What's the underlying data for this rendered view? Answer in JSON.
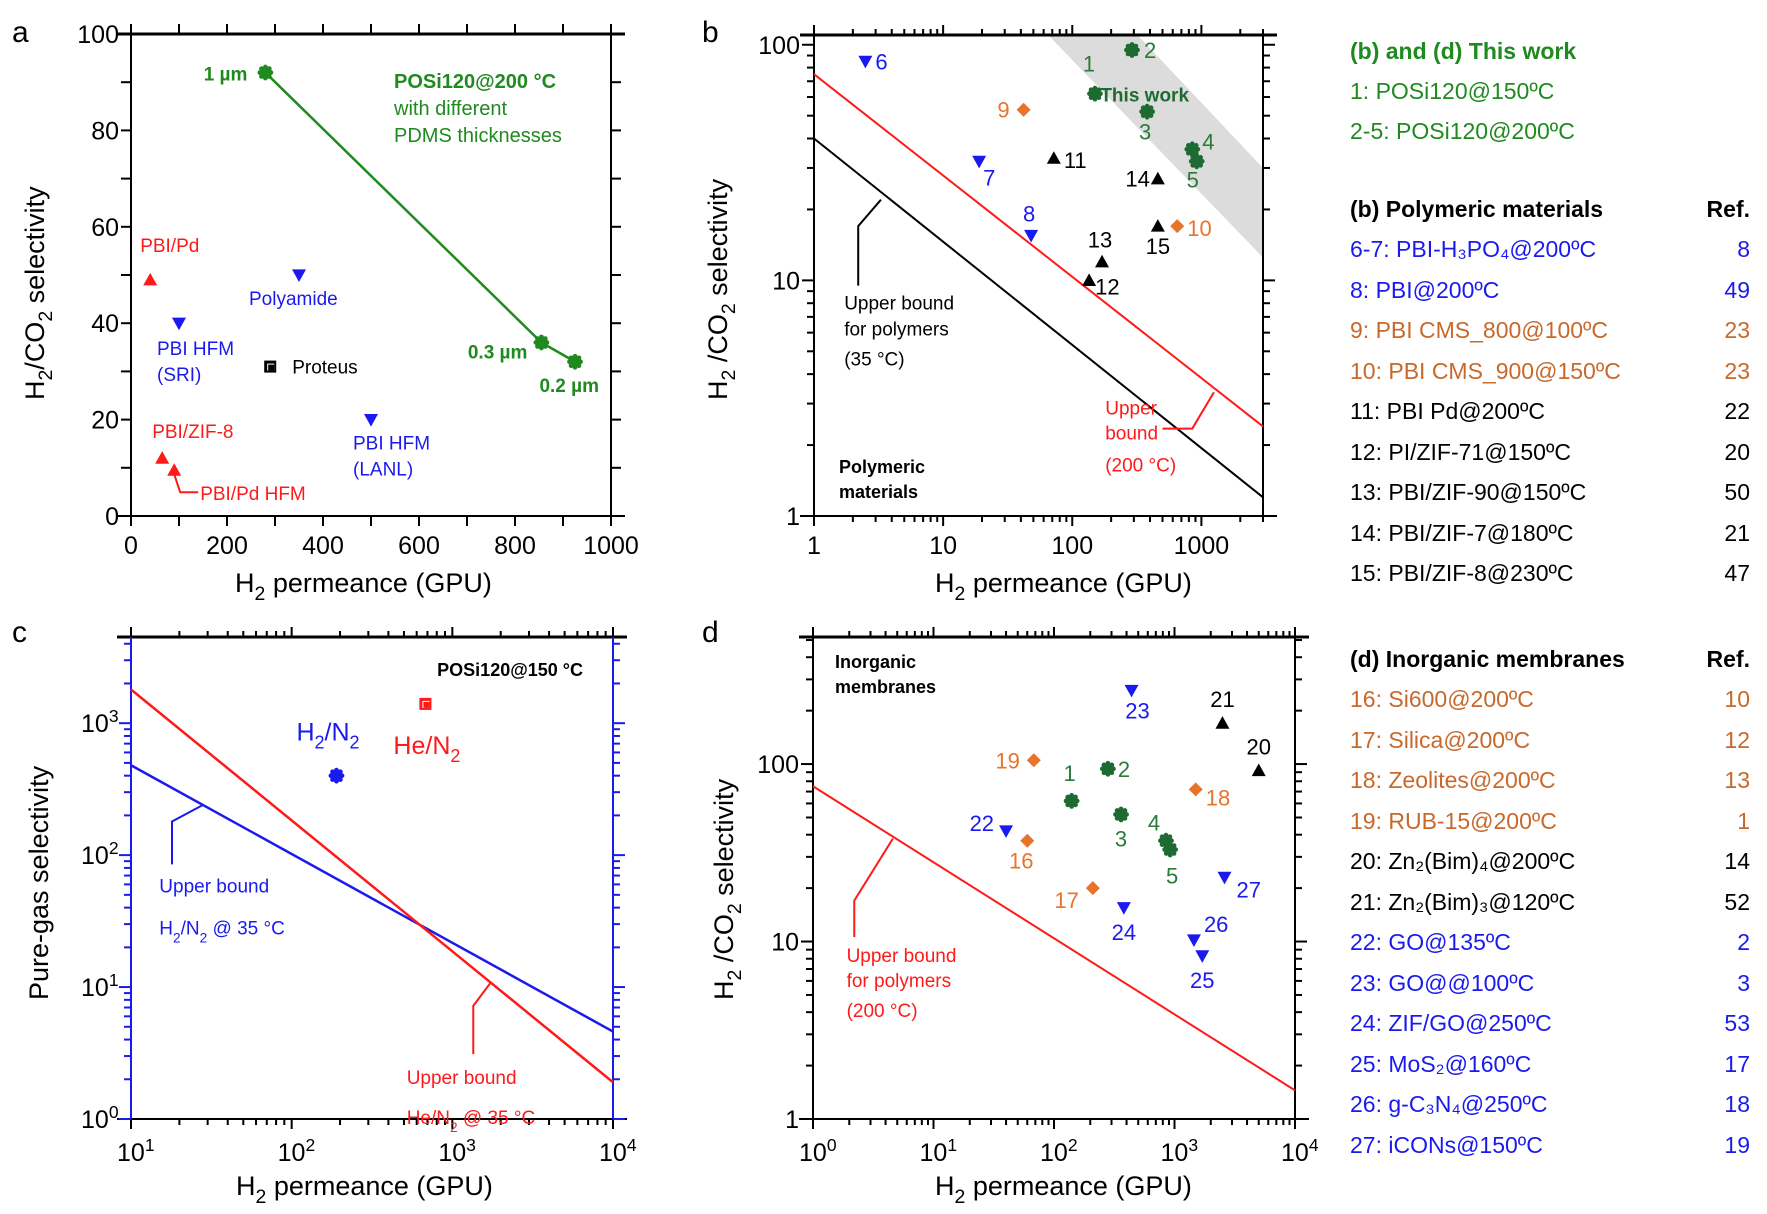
{
  "colors": {
    "green": "#1f8a1f",
    "darkgreen": "#1e6b32",
    "blue": "#1a1aee",
    "red": "#ff1a1a",
    "orange": "#e8732a",
    "legend_orange": "#c8682a",
    "black": "#000000",
    "band": "#dcdcdc"
  },
  "chart_data": [
    {
      "panel": "a",
      "type": "scatter",
      "xscale": "linear",
      "yscale": "linear",
      "xlabel": "H2 permeance (GPU)",
      "ylabel": "H2/CO2 selectivity",
      "xlim": [
        0,
        1000
      ],
      "ylim": [
        0,
        100
      ],
      "xticks": [
        "0",
        "200",
        "400",
        "600",
        "800",
        "1000"
      ],
      "yticks": [
        "0",
        "20",
        "40",
        "60",
        "80",
        "100"
      ],
      "annotation": {
        "title": "POSi120@200 °C",
        "lines": [
          "with different",
          "PDMS thicknesses"
        ]
      },
      "series": [
        {
          "name": "POSi120@200 °C",
          "marker": "asterisk",
          "color": "green",
          "connected": true,
          "points": [
            {
              "x": 280,
              "y": 92,
              "label": "1 µm"
            },
            {
              "x": 855,
              "y": 36,
              "label": "0.3 µm"
            },
            {
              "x": 925,
              "y": 32,
              "label": "0.2 µm"
            }
          ]
        },
        {
          "name": "PBI/Pd",
          "marker": "triangle-up",
          "color": "red",
          "points": [
            {
              "x": 40,
              "y": 49,
              "label": "PBI/Pd"
            }
          ]
        },
        {
          "name": "PBI/ZIF-8",
          "marker": "triangle-up",
          "color": "red",
          "points": [
            {
              "x": 65,
              "y": 12,
              "label": "PBI/ZIF-8"
            }
          ]
        },
        {
          "name": "PBI/Pd HFM",
          "marker": "triangle-up",
          "color": "red",
          "points": [
            {
              "x": 90,
              "y": 9.5,
              "label": "PBI/Pd HFM"
            }
          ]
        },
        {
          "name": "Polyamide",
          "marker": "triangle-down",
          "color": "blue",
          "points": [
            {
              "x": 350,
              "y": 50,
              "label": "Polyamide"
            }
          ]
        },
        {
          "name": "PBI HFM (SRI)",
          "marker": "triangle-down",
          "color": "blue",
          "points": [
            {
              "x": 100,
              "y": 40,
              "label": "PBI HFM (SRI)"
            }
          ]
        },
        {
          "name": "PBI HFM (LANL)",
          "marker": "triangle-down",
          "color": "blue",
          "points": [
            {
              "x": 500,
              "y": 20,
              "label": "PBI HFM (LANL)"
            }
          ]
        },
        {
          "name": "Proteus",
          "marker": "square",
          "color": "black",
          "points": [
            {
              "x": 290,
              "y": 31,
              "label": "Proteus"
            }
          ]
        }
      ]
    },
    {
      "panel": "b",
      "type": "scatter",
      "xscale": "log",
      "yscale": "log",
      "xlabel": "H2 permeance (GPU)",
      "ylabel": "H2/CO2 selectivity",
      "xlim": [
        1,
        3000
      ],
      "ylim": [
        1,
        110
      ],
      "xticks": [
        "1",
        "10",
        "100",
        "1000"
      ],
      "yticks": [
        "1",
        "10",
        "100"
      ],
      "annotations": [
        "This work",
        "Polymeric materials"
      ],
      "lines": [
        {
          "name": "Upper bound (200 °C)",
          "color": "red",
          "points": [
            [
              1,
              75
            ],
            [
              3000,
              2.4
            ]
          ],
          "label": [
            "Upper",
            "bound",
            "(200 °C)"
          ]
        },
        {
          "name": "Upper bound for polymers (35 °C)",
          "color": "black",
          "points": [
            [
              1,
              40
            ],
            [
              3000,
              1.2
            ]
          ],
          "label": [
            "Upper bound",
            "for polymers",
            "(35 °C)"
          ]
        }
      ],
      "points": [
        {
          "id": "1",
          "x": 150,
          "y": 62,
          "marker": "asterisk",
          "color": "darkgreen"
        },
        {
          "id": "2",
          "x": 290,
          "y": 95,
          "marker": "asterisk",
          "color": "darkgreen"
        },
        {
          "id": "3",
          "x": 380,
          "y": 52,
          "marker": "asterisk",
          "color": "darkgreen"
        },
        {
          "id": "4",
          "x": 850,
          "y": 36,
          "marker": "asterisk",
          "color": "darkgreen"
        },
        {
          "id": "5",
          "x": 920,
          "y": 32,
          "marker": "asterisk",
          "color": "darkgreen"
        },
        {
          "id": "6",
          "x": 2.5,
          "y": 85,
          "marker": "triangle-down",
          "color": "blue"
        },
        {
          "id": "7",
          "x": 19,
          "y": 32,
          "marker": "triangle-down",
          "color": "blue"
        },
        {
          "id": "8",
          "x": 48,
          "y": 15.5,
          "marker": "triangle-down",
          "color": "blue"
        },
        {
          "id": "9",
          "x": 42,
          "y": 53,
          "marker": "diamond",
          "color": "orange"
        },
        {
          "id": "10",
          "x": 650,
          "y": 17,
          "marker": "diamond",
          "color": "orange"
        },
        {
          "id": "11",
          "x": 72,
          "y": 33,
          "marker": "triangle-up",
          "color": "black"
        },
        {
          "id": "12",
          "x": 135,
          "y": 10,
          "marker": "triangle-up",
          "color": "black"
        },
        {
          "id": "13",
          "x": 170,
          "y": 12,
          "marker": "triangle-up",
          "color": "black"
        },
        {
          "id": "14",
          "x": 460,
          "y": 27,
          "marker": "triangle-up",
          "color": "black"
        },
        {
          "id": "15",
          "x": 460,
          "y": 17,
          "marker": "triangle-up",
          "color": "black"
        }
      ]
    },
    {
      "panel": "c",
      "type": "scatter",
      "xscale": "log",
      "yscale": "log",
      "xlabel": "H2 permeance (GPU)",
      "ylabel": "Pure-gas selectivity",
      "xlim": [
        10,
        10000
      ],
      "ylim": [
        1,
        4500
      ],
      "xticks": [
        "10^1",
        "10^2",
        "10^3",
        "10^4"
      ],
      "yticks": [
        "10^0",
        "10^1",
        "10^2",
        "10^3"
      ],
      "annotation": "POSi120@150 °C",
      "lines": [
        {
          "name": "Upper bound H2/N2 @ 35 °C",
          "color": "blue",
          "points": [
            [
              10,
              480
            ],
            [
              10000,
              4.6
            ]
          ]
        },
        {
          "name": "Upper bound He/N2 @ 35 °C",
          "color": "red",
          "points": [
            [
              10,
              1800
            ],
            [
              10000,
              1.9
            ]
          ]
        }
      ],
      "points": [
        {
          "name": "H2/N2",
          "x": 190,
          "y": 400,
          "marker": "asterisk",
          "color": "blue"
        },
        {
          "name": "He/N2",
          "x": 680,
          "y": 1400,
          "marker": "square",
          "color": "red"
        }
      ]
    },
    {
      "panel": "d",
      "type": "scatter",
      "xscale": "log",
      "yscale": "log",
      "xlabel": "H2 permeance (GPU)",
      "ylabel": "H2/CO2 selectivity",
      "xlim": [
        1,
        10000
      ],
      "ylim": [
        1,
        520
      ],
      "xticks": [
        "10^0",
        "10^1",
        "10^2",
        "10^3",
        "10^4"
      ],
      "yticks": [
        "1",
        "10",
        "100"
      ],
      "annotation": "Inorganic membranes",
      "lines": [
        {
          "name": "Upper bound for polymers (200 °C)",
          "color": "red",
          "points": [
            [
              1,
              75
            ],
            [
              10000,
              1.45
            ]
          ]
        }
      ],
      "points": [
        {
          "id": "1",
          "x": 140,
          "y": 62,
          "marker": "asterisk",
          "color": "darkgreen"
        },
        {
          "id": "2",
          "x": 280,
          "y": 94,
          "marker": "asterisk",
          "color": "darkgreen"
        },
        {
          "id": "3",
          "x": 360,
          "y": 52,
          "marker": "asterisk",
          "color": "darkgreen"
        },
        {
          "id": "4",
          "x": 850,
          "y": 37,
          "marker": "asterisk",
          "color": "darkgreen"
        },
        {
          "id": "5",
          "x": 920,
          "y": 33,
          "marker": "asterisk",
          "color": "darkgreen"
        },
        {
          "id": "16",
          "x": 60,
          "y": 37,
          "marker": "diamond",
          "color": "orange"
        },
        {
          "id": "17",
          "x": 210,
          "y": 20,
          "marker": "diamond",
          "color": "orange"
        },
        {
          "id": "18",
          "x": 1500,
          "y": 72,
          "marker": "diamond",
          "color": "orange"
        },
        {
          "id": "19",
          "x": 68,
          "y": 105,
          "marker": "diamond",
          "color": "orange"
        },
        {
          "id": "20",
          "x": 5000,
          "y": 92,
          "marker": "triangle-up",
          "color": "black"
        },
        {
          "id": "21",
          "x": 2500,
          "y": 170,
          "marker": "triangle-up",
          "color": "black"
        },
        {
          "id": "22",
          "x": 40,
          "y": 42,
          "marker": "triangle-down",
          "color": "blue"
        },
        {
          "id": "23",
          "x": 440,
          "y": 260,
          "marker": "triangle-down",
          "color": "blue"
        },
        {
          "id": "24",
          "x": 380,
          "y": 15.5,
          "marker": "triangle-down",
          "color": "blue"
        },
        {
          "id": "25",
          "x": 1700,
          "y": 8.3,
          "marker": "triangle-down",
          "color": "blue"
        },
        {
          "id": "26",
          "x": 1450,
          "y": 10.2,
          "marker": "triangle-down",
          "color": "blue"
        },
        {
          "id": "27",
          "x": 2600,
          "y": 23,
          "marker": "triangle-down",
          "color": "blue"
        }
      ]
    }
  ],
  "panel_letters": [
    "a",
    "b",
    "c",
    "d"
  ],
  "legend": {
    "this_work": {
      "title": "(b) and (d) This work",
      "items": [
        "1: POSi120@150ºC",
        "2-5: POSi120@200ºC"
      ]
    },
    "polymeric": {
      "title": "(b) Polymeric materials",
      "ref_header": "Ref.",
      "items": [
        {
          "label": "6-7: PBI-H₃PO₄@200ºC",
          "ref": "8",
          "color": "blue"
        },
        {
          "label": "8: PBI@200ºC",
          "ref": "49",
          "color": "blue"
        },
        {
          "label": "9: PBI CMS_800@100ºC",
          "ref": "23",
          "color": "legend_orange"
        },
        {
          "label": "10: PBI CMS_900@150ºC",
          "ref": "23",
          "color": "legend_orange"
        },
        {
          "label": "11: PBI Pd@200ºC",
          "ref": "22",
          "color": "black"
        },
        {
          "label": "12: PI/ZIF-71@150ºC",
          "ref": "20",
          "color": "black"
        },
        {
          "label": "13: PBI/ZIF-90@150ºC",
          "ref": "50",
          "color": "black"
        },
        {
          "label": "14: PBI/ZIF-7@180ºC",
          "ref": "21",
          "color": "black"
        },
        {
          "label": "15: PBI/ZIF-8@230ºC",
          "ref": "47",
          "color": "black"
        }
      ]
    },
    "inorganic": {
      "title": "(d) Inorganic membranes",
      "ref_header": "Ref.",
      "items": [
        {
          "label": "16: Si600@200ºC",
          "ref": "10",
          "color": "legend_orange"
        },
        {
          "label": "17: Silica@200ºC",
          "ref": "12",
          "color": "legend_orange"
        },
        {
          "label": "18: Zeolites@200ºC",
          "ref": "13",
          "color": "legend_orange"
        },
        {
          "label": "19: RUB-15@200ºC",
          "ref": "1",
          "color": "legend_orange"
        },
        {
          "label": "20: Zn₂(Bim)₄@200ºC",
          "ref": "14",
          "color": "black"
        },
        {
          "label": "21: Zn₂(Bim)₃@120ºC",
          "ref": "52",
          "color": "black"
        },
        {
          "label": "22: GO@135ºC",
          "ref": "2",
          "color": "blue"
        },
        {
          "label": "23: GO@@100ºC",
          "ref": "3",
          "color": "blue"
        },
        {
          "label": "24: ZIF/GO@250ºC",
          "ref": "53",
          "color": "blue"
        },
        {
          "label": "25: MoS₂@160ºC",
          "ref": "17",
          "color": "blue"
        },
        {
          "label": "26: g-C₃N₄@250ºC",
          "ref": "18",
          "color": "blue"
        },
        {
          "label": "27: iCONs@150ºC",
          "ref": "19",
          "color": "blue"
        }
      ]
    }
  }
}
